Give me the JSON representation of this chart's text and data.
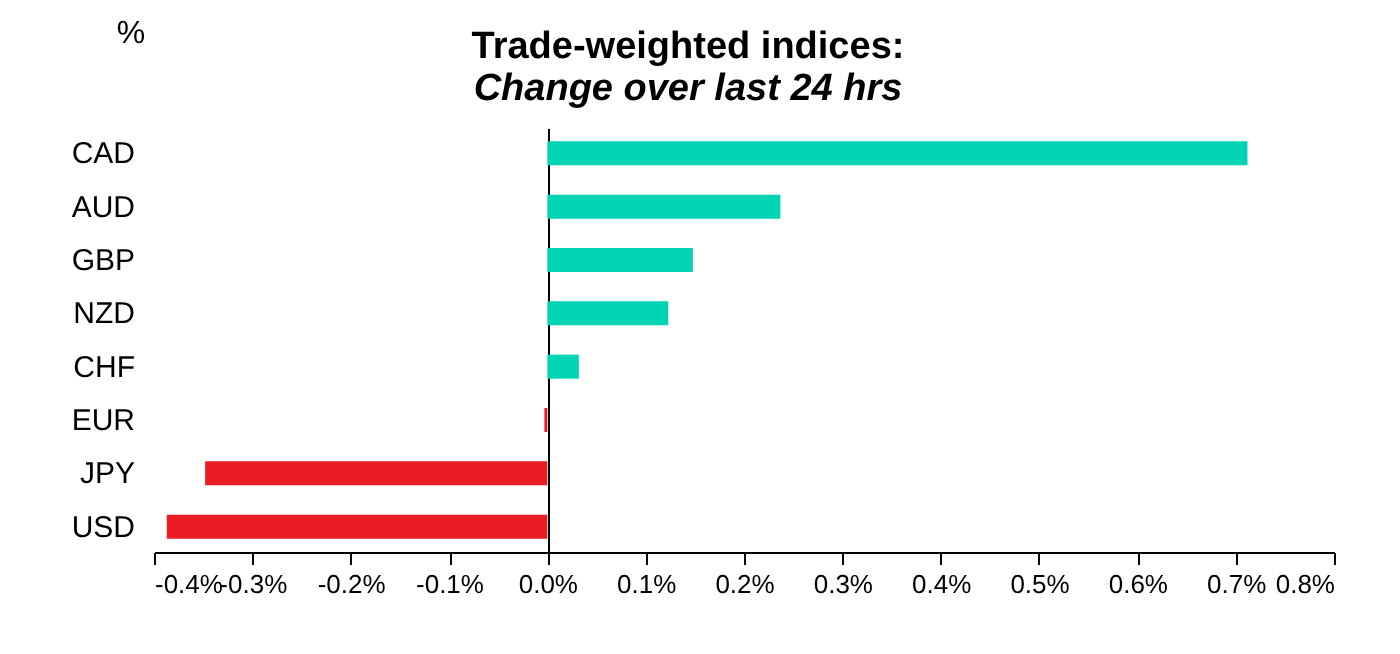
{
  "chart_data": {
    "type": "bar",
    "orientation": "horizontal",
    "title": "Trade-weighted indices:",
    "subtitle": "Change over last 24 hrs",
    "ylabel": "%",
    "categories": [
      "CAD",
      "AUD",
      "GBP",
      "NZD",
      "CHF",
      "EUR",
      "JPY",
      "USD"
    ],
    "values": [
      0.712,
      0.237,
      0.148,
      0.123,
      0.032,
      -0.003,
      -0.348,
      -0.387
    ],
    "colors": [
      "#00d4b4",
      "#00d4b4",
      "#00d4b4",
      "#00d4b4",
      "#00d4b4",
      "#ec1c24",
      "#ec1c24",
      "#ec1c24"
    ],
    "xlim": [
      -0.4,
      0.8
    ],
    "xticks": [
      {
        "value": -0.4,
        "label": "-0.4%"
      },
      {
        "value": -0.3,
        "label": "-0.3%"
      },
      {
        "value": -0.2,
        "label": "-0.2%"
      },
      {
        "value": -0.1,
        "label": "-0.1%"
      },
      {
        "value": 0,
        "label": "0.0%"
      },
      {
        "value": 0.1,
        "label": "0.1%"
      },
      {
        "value": 0.2,
        "label": "0.2%"
      },
      {
        "value": 0.3,
        "label": "0.3%"
      },
      {
        "value": 0.4,
        "label": "0.4%"
      },
      {
        "value": 0.5,
        "label": "0.5%"
      },
      {
        "value": 0.6,
        "label": "0.6%"
      },
      {
        "value": 0.7,
        "label": "0.7%"
      },
      {
        "value": 0.8,
        "label": "0.8%"
      }
    ],
    "legend": false
  }
}
